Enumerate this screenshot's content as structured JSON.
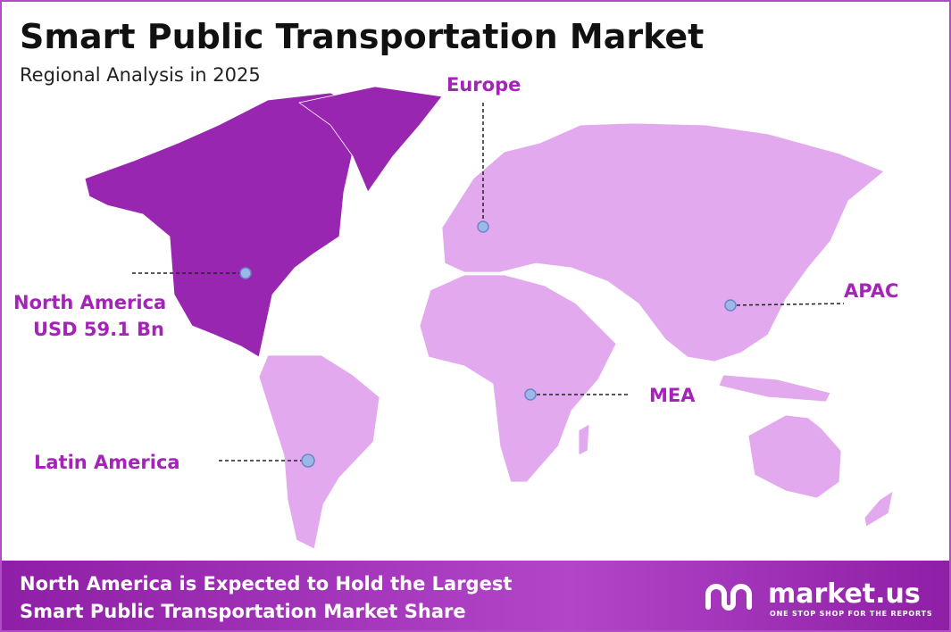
{
  "header": {
    "title": "Smart Public Transportation Market",
    "subtitle": "Regional Analysis in 2025"
  },
  "regions": [
    {
      "name": "North America",
      "value": "USD 59.1 Bn"
    },
    {
      "name": "Europe"
    },
    {
      "name": "APAC"
    },
    {
      "name": "MEA"
    },
    {
      "name": "Latin America"
    }
  ],
  "footer": {
    "line1": "North America is Expected to Hold the Largest",
    "line2": "Smart Public Transportation Market Share",
    "brand": "market.us",
    "tagline": "ONE STOP SHOP FOR THE REPORTS"
  }
}
